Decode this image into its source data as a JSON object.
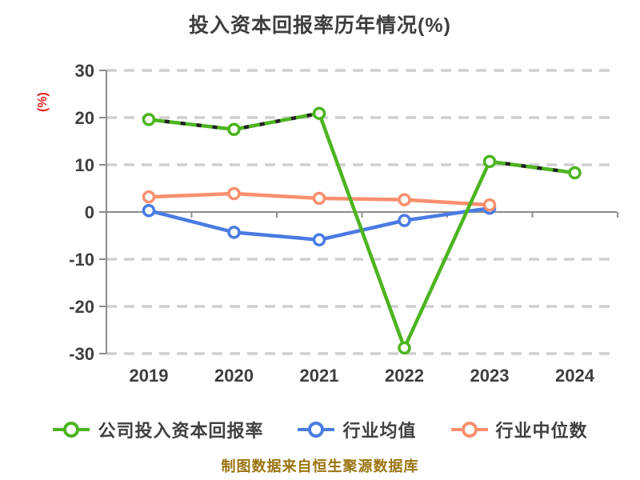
{
  "title": "投入资本回报率历年情况(%)",
  "footer": "制图数据来自恒生聚源数据库",
  "chart_data": {
    "type": "line",
    "title": "投入资本回报率历年情况(%)",
    "xlabel": "",
    "ylabel": "(%)",
    "ylim": [
      -30,
      30
    ],
    "yticks": [
      30,
      20,
      10,
      0,
      -10,
      -20,
      -30
    ],
    "grid": "horizontal-dashed",
    "legend_position": "bottom",
    "categories": [
      "2019",
      "2020",
      "2021",
      "2022",
      "2023",
      "2024"
    ],
    "series": [
      {
        "name": "公司投入资本回报率",
        "color": "#4cb420",
        "marker": "white-circle",
        "values": [
          19.6,
          17.5,
          20.9,
          -28.8,
          10.7,
          8.3
        ],
        "dash_overlay_segments": [
          [
            0,
            2
          ],
          [
            4,
            5
          ]
        ]
      },
      {
        "name": "行业均值",
        "color": "#4a7be3",
        "marker": "white-circle",
        "values": [
          0.3,
          -4.3,
          -5.9,
          -1.8,
          0.8,
          null
        ]
      },
      {
        "name": "行业中位数",
        "color": "#fa8f6e",
        "marker": "white-circle",
        "values": [
          3.2,
          3.9,
          2.9,
          2.6,
          1.5,
          null
        ]
      }
    ]
  },
  "colors": {
    "title_text": "#3e3e3e",
    "tick_text": "#3e3e3e",
    "axis_line": "#8c8c8c",
    "gridline": "#cfcfcf",
    "ylabel_red": "#e02020",
    "dash_overlay": "#222222",
    "footer_gold": "#9a7410",
    "marker_fill": "#ffffff"
  }
}
